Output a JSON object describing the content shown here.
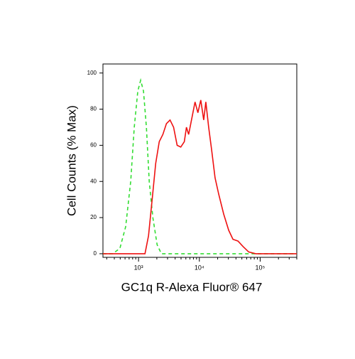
{
  "chart_data": {
    "type": "histogram-line",
    "xlabel": "GC1q R-Alexa Fluor® 647",
    "ylabel": "Cell Counts (% Max)",
    "xscale": "log",
    "xlim": [
      260,
      400000
    ],
    "ylim": [
      -2,
      105
    ],
    "xticks": [
      {
        "value": 1000,
        "label": "10³"
      },
      {
        "value": 10000,
        "label": "10⁴"
      },
      {
        "value": 100000,
        "label": "10⁵"
      }
    ],
    "xminorticks": [
      300,
      400,
      500,
      600,
      700,
      800,
      900,
      2000,
      3000,
      4000,
      5000,
      6000,
      7000,
      8000,
      9000,
      20000,
      30000,
      40000,
      50000,
      60000,
      70000,
      80000,
      90000,
      200000,
      300000,
      400000
    ],
    "yticks": [
      0,
      20,
      40,
      60,
      80,
      100
    ],
    "series": [
      {
        "color": "#33dd33",
        "dashed": true,
        "x": [
          260,
          377,
          494,
          614,
          743,
          850,
          973,
          1085,
          1208,
          1347,
          1501,
          1719,
          2022,
          2378,
          400000
        ],
        "values": [
          0,
          0,
          3,
          15,
          40,
          70,
          90,
          96,
          90,
          70,
          40,
          20,
          5,
          0,
          0
        ]
      },
      {
        "color": "#ee1111",
        "dashed": false,
        "x": [
          260,
          1276,
          1462,
          1675,
          1915,
          2192,
          2512,
          2877,
          3296,
          3767,
          4315,
          4943,
          5662,
          6138,
          6668,
          7430,
          8492,
          9462,
          10560,
          11780,
          12770,
          14220,
          15850,
          18150,
          20790,
          25120,
          30350,
          35730,
          43150,
          52200,
          64900,
          84900,
          400000
        ],
        "values": [
          0,
          0,
          10,
          30,
          50,
          62,
          66,
          72,
          74,
          70,
          60,
          59,
          62,
          70,
          66,
          74,
          84,
          78,
          85,
          74,
          84,
          70,
          58,
          42,
          33,
          22,
          13,
          8,
          7,
          4,
          1,
          0,
          0
        ]
      }
    ]
  }
}
